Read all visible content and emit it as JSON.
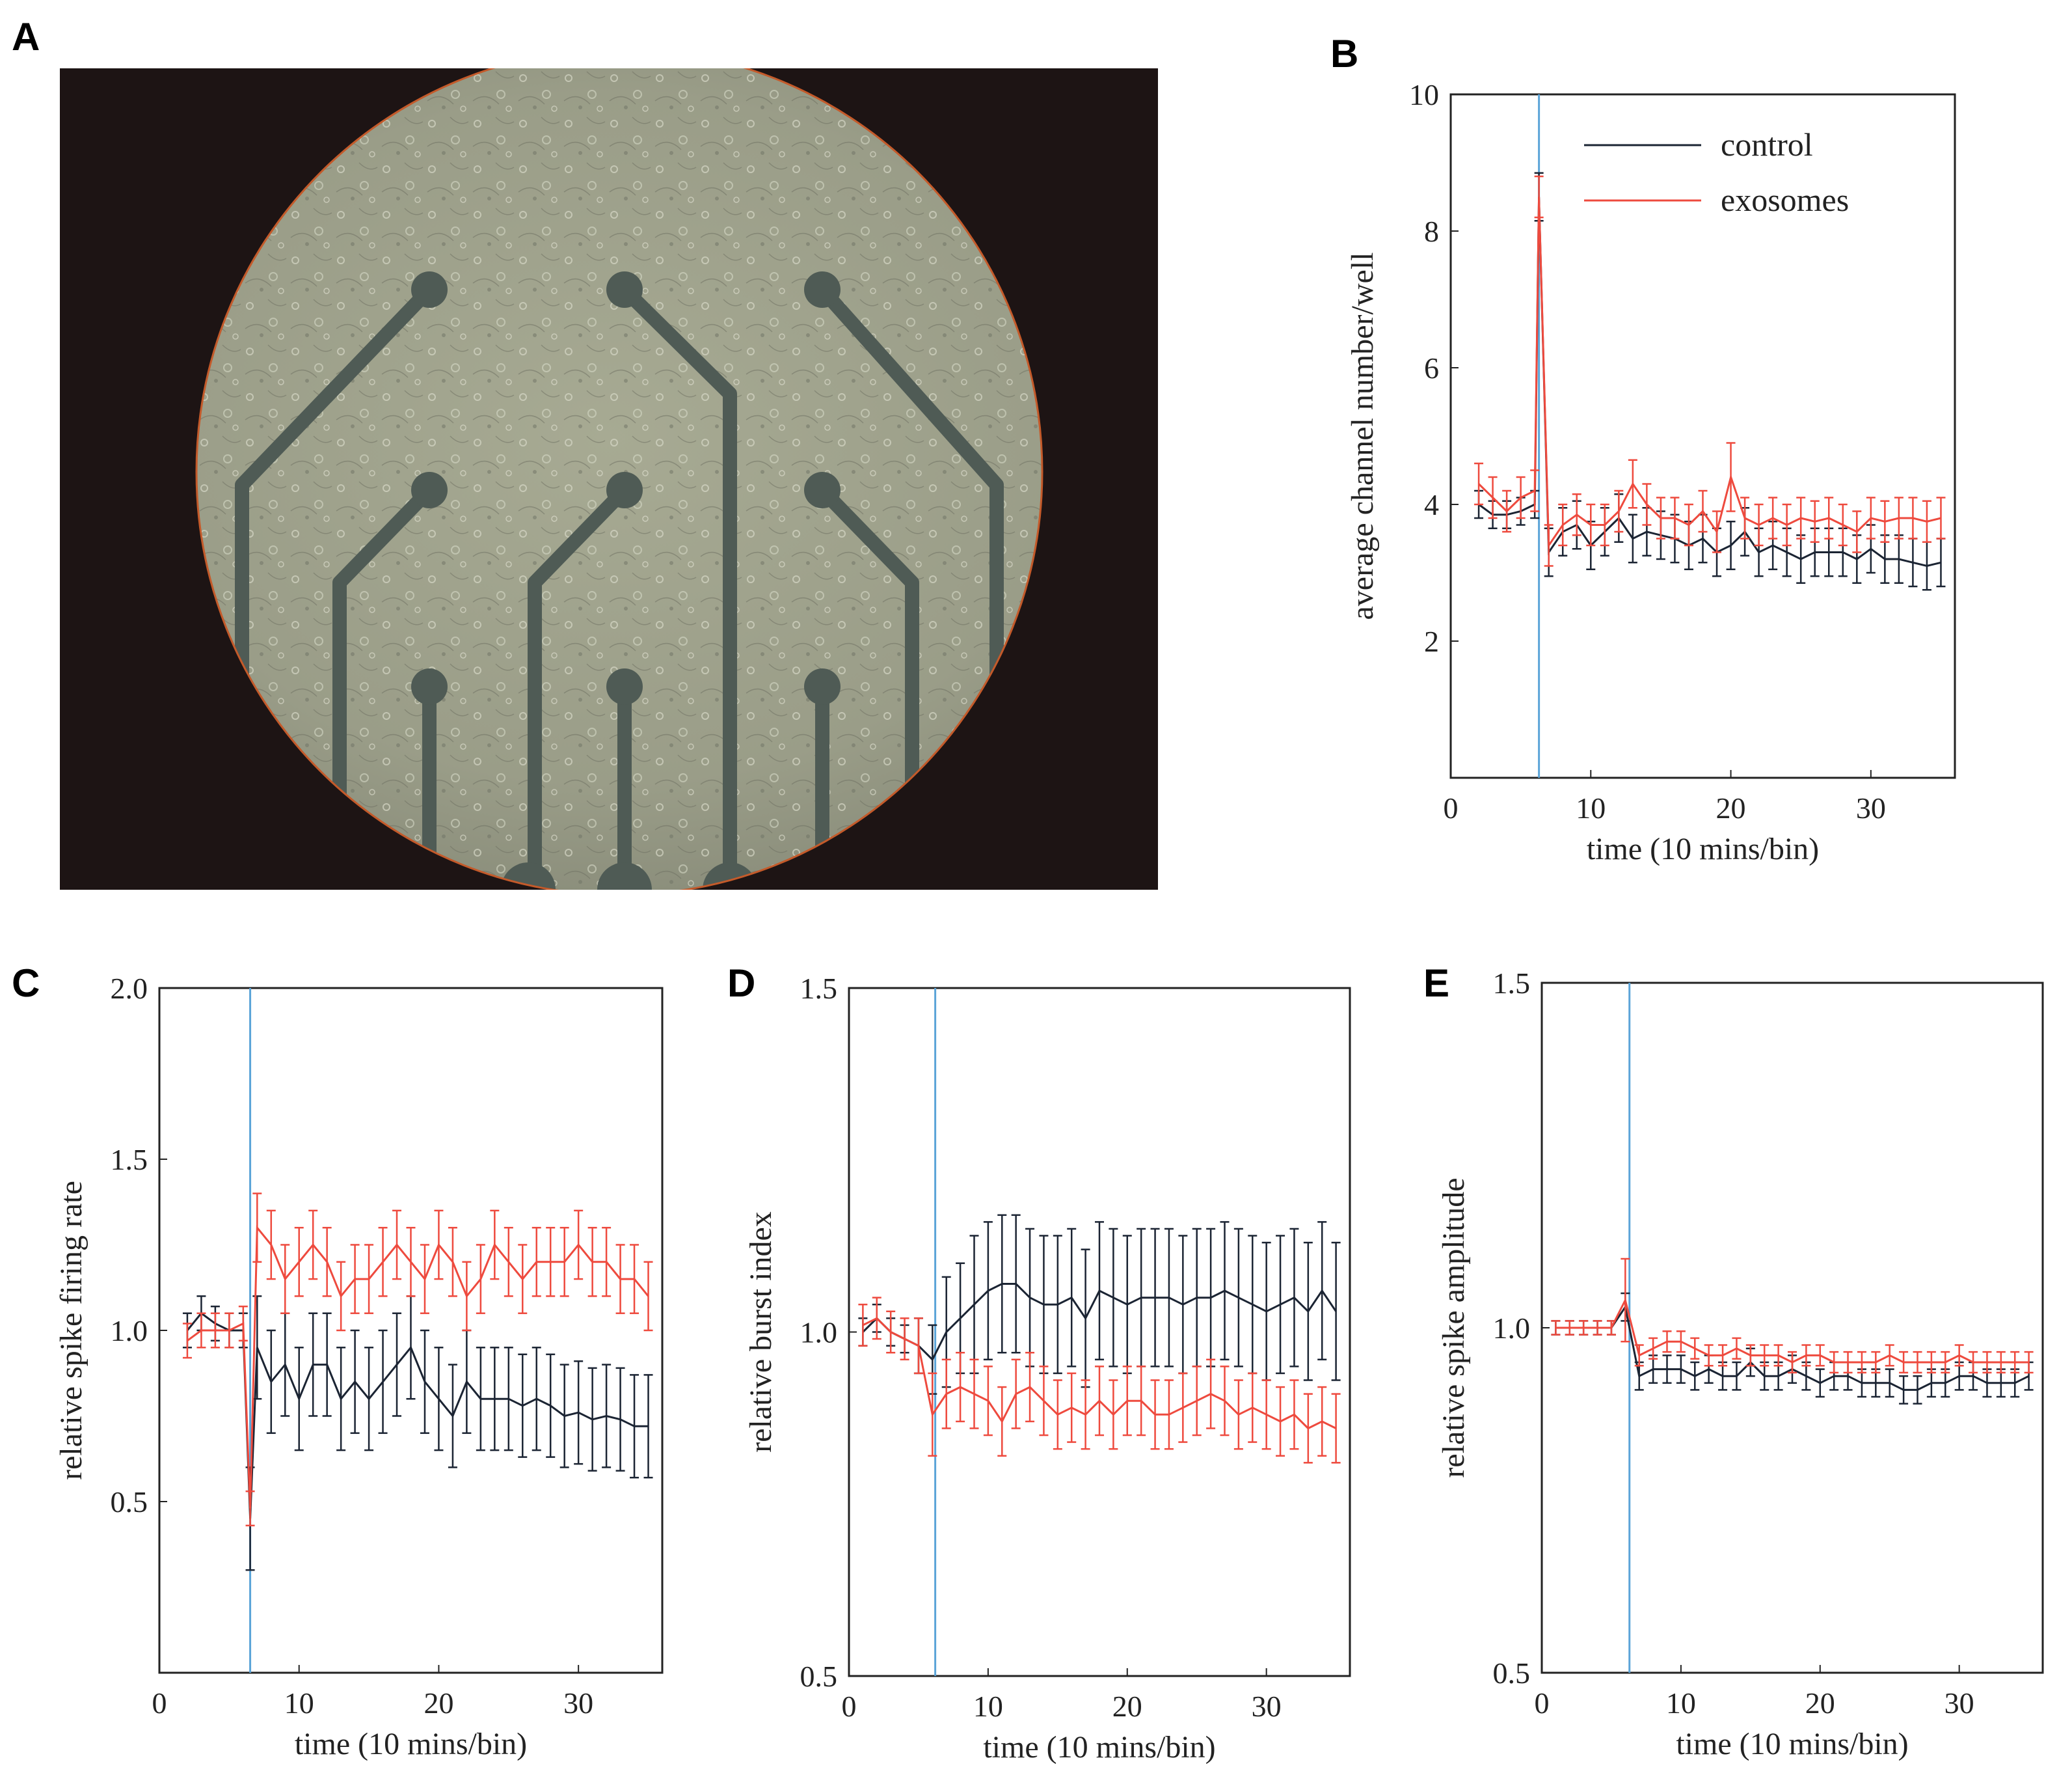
{
  "panels": [
    {
      "letter": "A"
    },
    {
      "letter": "B"
    },
    {
      "letter": "C"
    },
    {
      "letter": "D"
    },
    {
      "letter": "E"
    }
  ],
  "colors": {
    "control": "#1b2433",
    "exosomes": "#ee4a3e",
    "marker": "#5ba4d8"
  },
  "chart_data": [
    {
      "id": "B",
      "type": "line",
      "xlabel": "time (10 mins/bin)",
      "ylabel": "average channel number/well",
      "xlim": [
        0,
        36
      ],
      "ylim": [
        0,
        10
      ],
      "xticks": [
        0,
        10,
        20,
        30
      ],
      "yticks": [
        2,
        4,
        6,
        8,
        10
      ],
      "ytick_labels": [
        "2",
        "4",
        "6",
        "8",
        "10"
      ],
      "marker_x": 6.3,
      "legend": [
        "control",
        "exosomes"
      ],
      "x": [
        2,
        3,
        4,
        5,
        6,
        6.3,
        7,
        8,
        9,
        10,
        11,
        12,
        13,
        14,
        15,
        16,
        17,
        18,
        19,
        20,
        21,
        22,
        23,
        24,
        25,
        26,
        27,
        28,
        29,
        30,
        31,
        32,
        33,
        34,
        35
      ],
      "series": [
        {
          "name": "control",
          "values": [
            4.0,
            3.85,
            3.85,
            3.9,
            4.0,
            8.5,
            3.3,
            3.6,
            3.7,
            3.4,
            3.6,
            3.8,
            3.5,
            3.6,
            3.55,
            3.5,
            3.4,
            3.5,
            3.3,
            3.4,
            3.6,
            3.3,
            3.4,
            3.3,
            3.2,
            3.3,
            3.3,
            3.3,
            3.2,
            3.35,
            3.2,
            3.2,
            3.15,
            3.1,
            3.15
          ],
          "err": [
            0.2,
            0.2,
            0.2,
            0.2,
            0.2,
            0.35,
            0.35,
            0.35,
            0.35,
            0.35,
            0.35,
            0.35,
            0.35,
            0.35,
            0.35,
            0.35,
            0.35,
            0.35,
            0.35,
            0.35,
            0.35,
            0.35,
            0.35,
            0.35,
            0.35,
            0.35,
            0.35,
            0.35,
            0.35,
            0.35,
            0.35,
            0.35,
            0.35,
            0.35,
            0.35
          ]
        },
        {
          "name": "exosomes",
          "values": [
            4.3,
            4.1,
            3.9,
            4.1,
            4.2,
            8.5,
            3.4,
            3.7,
            3.85,
            3.7,
            3.7,
            3.9,
            4.3,
            4.0,
            3.8,
            3.8,
            3.7,
            3.9,
            3.6,
            4.4,
            3.8,
            3.7,
            3.8,
            3.7,
            3.8,
            3.75,
            3.8,
            3.7,
            3.6,
            3.8,
            3.75,
            3.8,
            3.8,
            3.75,
            3.8
          ],
          "err": [
            0.3,
            0.3,
            0.3,
            0.3,
            0.3,
            0.3,
            0.3,
            0.3,
            0.3,
            0.3,
            0.3,
            0.3,
            0.35,
            0.3,
            0.3,
            0.3,
            0.3,
            0.3,
            0.3,
            0.5,
            0.3,
            0.3,
            0.3,
            0.3,
            0.3,
            0.3,
            0.3,
            0.3,
            0.3,
            0.3,
            0.3,
            0.3,
            0.3,
            0.3,
            0.3
          ]
        }
      ]
    },
    {
      "id": "C",
      "type": "line",
      "xlabel": "time (10 mins/bin)",
      "ylabel": "relative spike firing rate",
      "xlim": [
        0,
        36
      ],
      "ylim": [
        0,
        2
      ],
      "xticks": [
        0,
        10,
        20,
        30
      ],
      "yticks": [
        0.5,
        1.0,
        1.5,
        2.0
      ],
      "ytick_labels": [
        "0.5",
        "1.0",
        "1.5",
        "2.0"
      ],
      "marker_x": 6.5,
      "x": [
        2,
        3,
        4,
        5,
        6,
        6.5,
        7,
        8,
        9,
        10,
        11,
        12,
        13,
        14,
        15,
        16,
        17,
        18,
        19,
        20,
        21,
        22,
        23,
        24,
        25,
        26,
        27,
        28,
        29,
        30,
        31,
        32,
        33,
        34,
        35
      ],
      "series": [
        {
          "name": "control",
          "values": [
            1.0,
            1.05,
            1.02,
            1.0,
            1.0,
            0.45,
            0.95,
            0.85,
            0.9,
            0.8,
            0.9,
            0.9,
            0.8,
            0.85,
            0.8,
            0.85,
            0.9,
            0.95,
            0.85,
            0.8,
            0.75,
            0.85,
            0.8,
            0.8,
            0.8,
            0.78,
            0.8,
            0.78,
            0.75,
            0.76,
            0.74,
            0.75,
            0.74,
            0.72,
            0.72
          ],
          "err": [
            0.05,
            0.05,
            0.05,
            0.05,
            0.05,
            0.15,
            0.15,
            0.15,
            0.15,
            0.15,
            0.15,
            0.15,
            0.15,
            0.15,
            0.15,
            0.15,
            0.15,
            0.15,
            0.15,
            0.15,
            0.15,
            0.15,
            0.15,
            0.15,
            0.15,
            0.15,
            0.15,
            0.15,
            0.15,
            0.15,
            0.15,
            0.15,
            0.15,
            0.15,
            0.15
          ]
        },
        {
          "name": "exosomes",
          "values": [
            0.97,
            1.0,
            1.0,
            1.0,
            1.02,
            0.48,
            1.3,
            1.25,
            1.15,
            1.2,
            1.25,
            1.2,
            1.1,
            1.15,
            1.15,
            1.2,
            1.25,
            1.2,
            1.15,
            1.25,
            1.2,
            1.1,
            1.15,
            1.25,
            1.2,
            1.15,
            1.2,
            1.2,
            1.2,
            1.25,
            1.2,
            1.2,
            1.15,
            1.15,
            1.1
          ],
          "err": [
            0.05,
            0.05,
            0.05,
            0.05,
            0.05,
            0.05,
            0.1,
            0.1,
            0.1,
            0.1,
            0.1,
            0.1,
            0.1,
            0.1,
            0.1,
            0.1,
            0.1,
            0.1,
            0.1,
            0.1,
            0.1,
            0.1,
            0.1,
            0.1,
            0.1,
            0.1,
            0.1,
            0.1,
            0.1,
            0.1,
            0.1,
            0.1,
            0.1,
            0.1,
            0.1
          ]
        }
      ]
    },
    {
      "id": "D",
      "type": "line",
      "xlabel": "time (10 mins/bin)",
      "ylabel": "relative burst index",
      "xlim": [
        0,
        36
      ],
      "ylim": [
        0.5,
        1.5
      ],
      "xticks": [
        0,
        10,
        20,
        30
      ],
      "yticks": [
        0.5,
        1.0,
        1.5
      ],
      "ytick_labels": [
        "0.5",
        "1.0",
        "1.5"
      ],
      "marker_x": 6.2,
      "x": [
        1,
        2,
        3,
        4,
        5,
        6,
        7,
        8,
        9,
        10,
        11,
        12,
        13,
        14,
        15,
        16,
        17,
        18,
        19,
        20,
        21,
        22,
        23,
        24,
        25,
        26,
        27,
        28,
        29,
        30,
        31,
        32,
        33,
        34,
        35
      ],
      "series": [
        {
          "name": "control",
          "values": [
            1.0,
            1.02,
            1.0,
            0.99,
            0.98,
            0.96,
            1.0,
            1.02,
            1.04,
            1.06,
            1.07,
            1.07,
            1.05,
            1.04,
            1.04,
            1.05,
            1.02,
            1.06,
            1.05,
            1.04,
            1.05,
            1.05,
            1.05,
            1.04,
            1.05,
            1.05,
            1.06,
            1.05,
            1.04,
            1.03,
            1.04,
            1.05,
            1.03,
            1.06,
            1.03
          ],
          "err": [
            0.02,
            0.02,
            0.02,
            0.02,
            0.04,
            0.05,
            0.08,
            0.08,
            0.1,
            0.1,
            0.1,
            0.1,
            0.1,
            0.1,
            0.1,
            0.1,
            0.1,
            0.1,
            0.1,
            0.1,
            0.1,
            0.1,
            0.1,
            0.1,
            0.1,
            0.1,
            0.1,
            0.1,
            0.1,
            0.1,
            0.1,
            0.1,
            0.1,
            0.1,
            0.1
          ]
        },
        {
          "name": "exosomes",
          "values": [
            1.01,
            1.02,
            1.0,
            0.99,
            0.98,
            0.88,
            0.91,
            0.92,
            0.91,
            0.9,
            0.87,
            0.91,
            0.92,
            0.9,
            0.88,
            0.89,
            0.88,
            0.9,
            0.88,
            0.9,
            0.9,
            0.88,
            0.88,
            0.89,
            0.9,
            0.91,
            0.9,
            0.88,
            0.89,
            0.88,
            0.87,
            0.88,
            0.86,
            0.87,
            0.86
          ],
          "err": [
            0.03,
            0.03,
            0.03,
            0.03,
            0.04,
            0.06,
            0.05,
            0.05,
            0.05,
            0.05,
            0.05,
            0.05,
            0.05,
            0.05,
            0.05,
            0.05,
            0.05,
            0.05,
            0.05,
            0.05,
            0.05,
            0.05,
            0.05,
            0.05,
            0.05,
            0.05,
            0.05,
            0.05,
            0.05,
            0.05,
            0.05,
            0.05,
            0.05,
            0.05,
            0.05
          ]
        }
      ]
    },
    {
      "id": "E",
      "type": "line",
      "xlabel": "time (10 mins/bin)",
      "ylabel": "relative spike amplitude",
      "xlim": [
        0,
        36
      ],
      "ylim": [
        0.5,
        1.5
      ],
      "xticks": [
        0,
        10,
        20,
        30
      ],
      "yticks": [
        0.5,
        1.0,
        1.5
      ],
      "ytick_labels": [
        "0.5",
        "1.0",
        "1.5"
      ],
      "marker_x": 6.3,
      "x": [
        1,
        2,
        3,
        4,
        5,
        6,
        7,
        8,
        9,
        10,
        11,
        12,
        13,
        14,
        15,
        16,
        17,
        18,
        19,
        20,
        21,
        22,
        23,
        24,
        25,
        26,
        27,
        28,
        29,
        30,
        31,
        32,
        33,
        34,
        35
      ],
      "series": [
        {
          "name": "control",
          "values": [
            1.0,
            1.0,
            1.0,
            1.0,
            1.0,
            1.03,
            0.93,
            0.94,
            0.94,
            0.94,
            0.93,
            0.94,
            0.93,
            0.93,
            0.95,
            0.93,
            0.93,
            0.94,
            0.93,
            0.92,
            0.93,
            0.93,
            0.92,
            0.92,
            0.92,
            0.91,
            0.91,
            0.92,
            0.92,
            0.93,
            0.93,
            0.92,
            0.92,
            0.92,
            0.93
          ],
          "err": [
            0.01,
            0.01,
            0.01,
            0.01,
            0.01,
            0.02,
            0.02,
            0.02,
            0.02,
            0.02,
            0.02,
            0.02,
            0.02,
            0.02,
            0.02,
            0.02,
            0.02,
            0.02,
            0.02,
            0.02,
            0.02,
            0.02,
            0.02,
            0.02,
            0.02,
            0.02,
            0.02,
            0.02,
            0.02,
            0.02,
            0.02,
            0.02,
            0.02,
            0.02,
            0.02
          ]
        },
        {
          "name": "exosomes",
          "values": [
            1.0,
            1.0,
            1.0,
            1.0,
            1.0,
            1.04,
            0.96,
            0.97,
            0.98,
            0.98,
            0.97,
            0.96,
            0.96,
            0.97,
            0.96,
            0.96,
            0.96,
            0.95,
            0.96,
            0.96,
            0.95,
            0.95,
            0.95,
            0.95,
            0.96,
            0.95,
            0.95,
            0.95,
            0.95,
            0.96,
            0.95,
            0.95,
            0.95,
            0.95,
            0.95
          ],
          "err": [
            0.01,
            0.01,
            0.01,
            0.01,
            0.01,
            0.06,
            0.015,
            0.015,
            0.015,
            0.015,
            0.015,
            0.015,
            0.015,
            0.015,
            0.015,
            0.015,
            0.015,
            0.015,
            0.015,
            0.015,
            0.015,
            0.015,
            0.015,
            0.015,
            0.015,
            0.015,
            0.015,
            0.015,
            0.015,
            0.015,
            0.015,
            0.015,
            0.015,
            0.015,
            0.015
          ]
        }
      ]
    }
  ]
}
